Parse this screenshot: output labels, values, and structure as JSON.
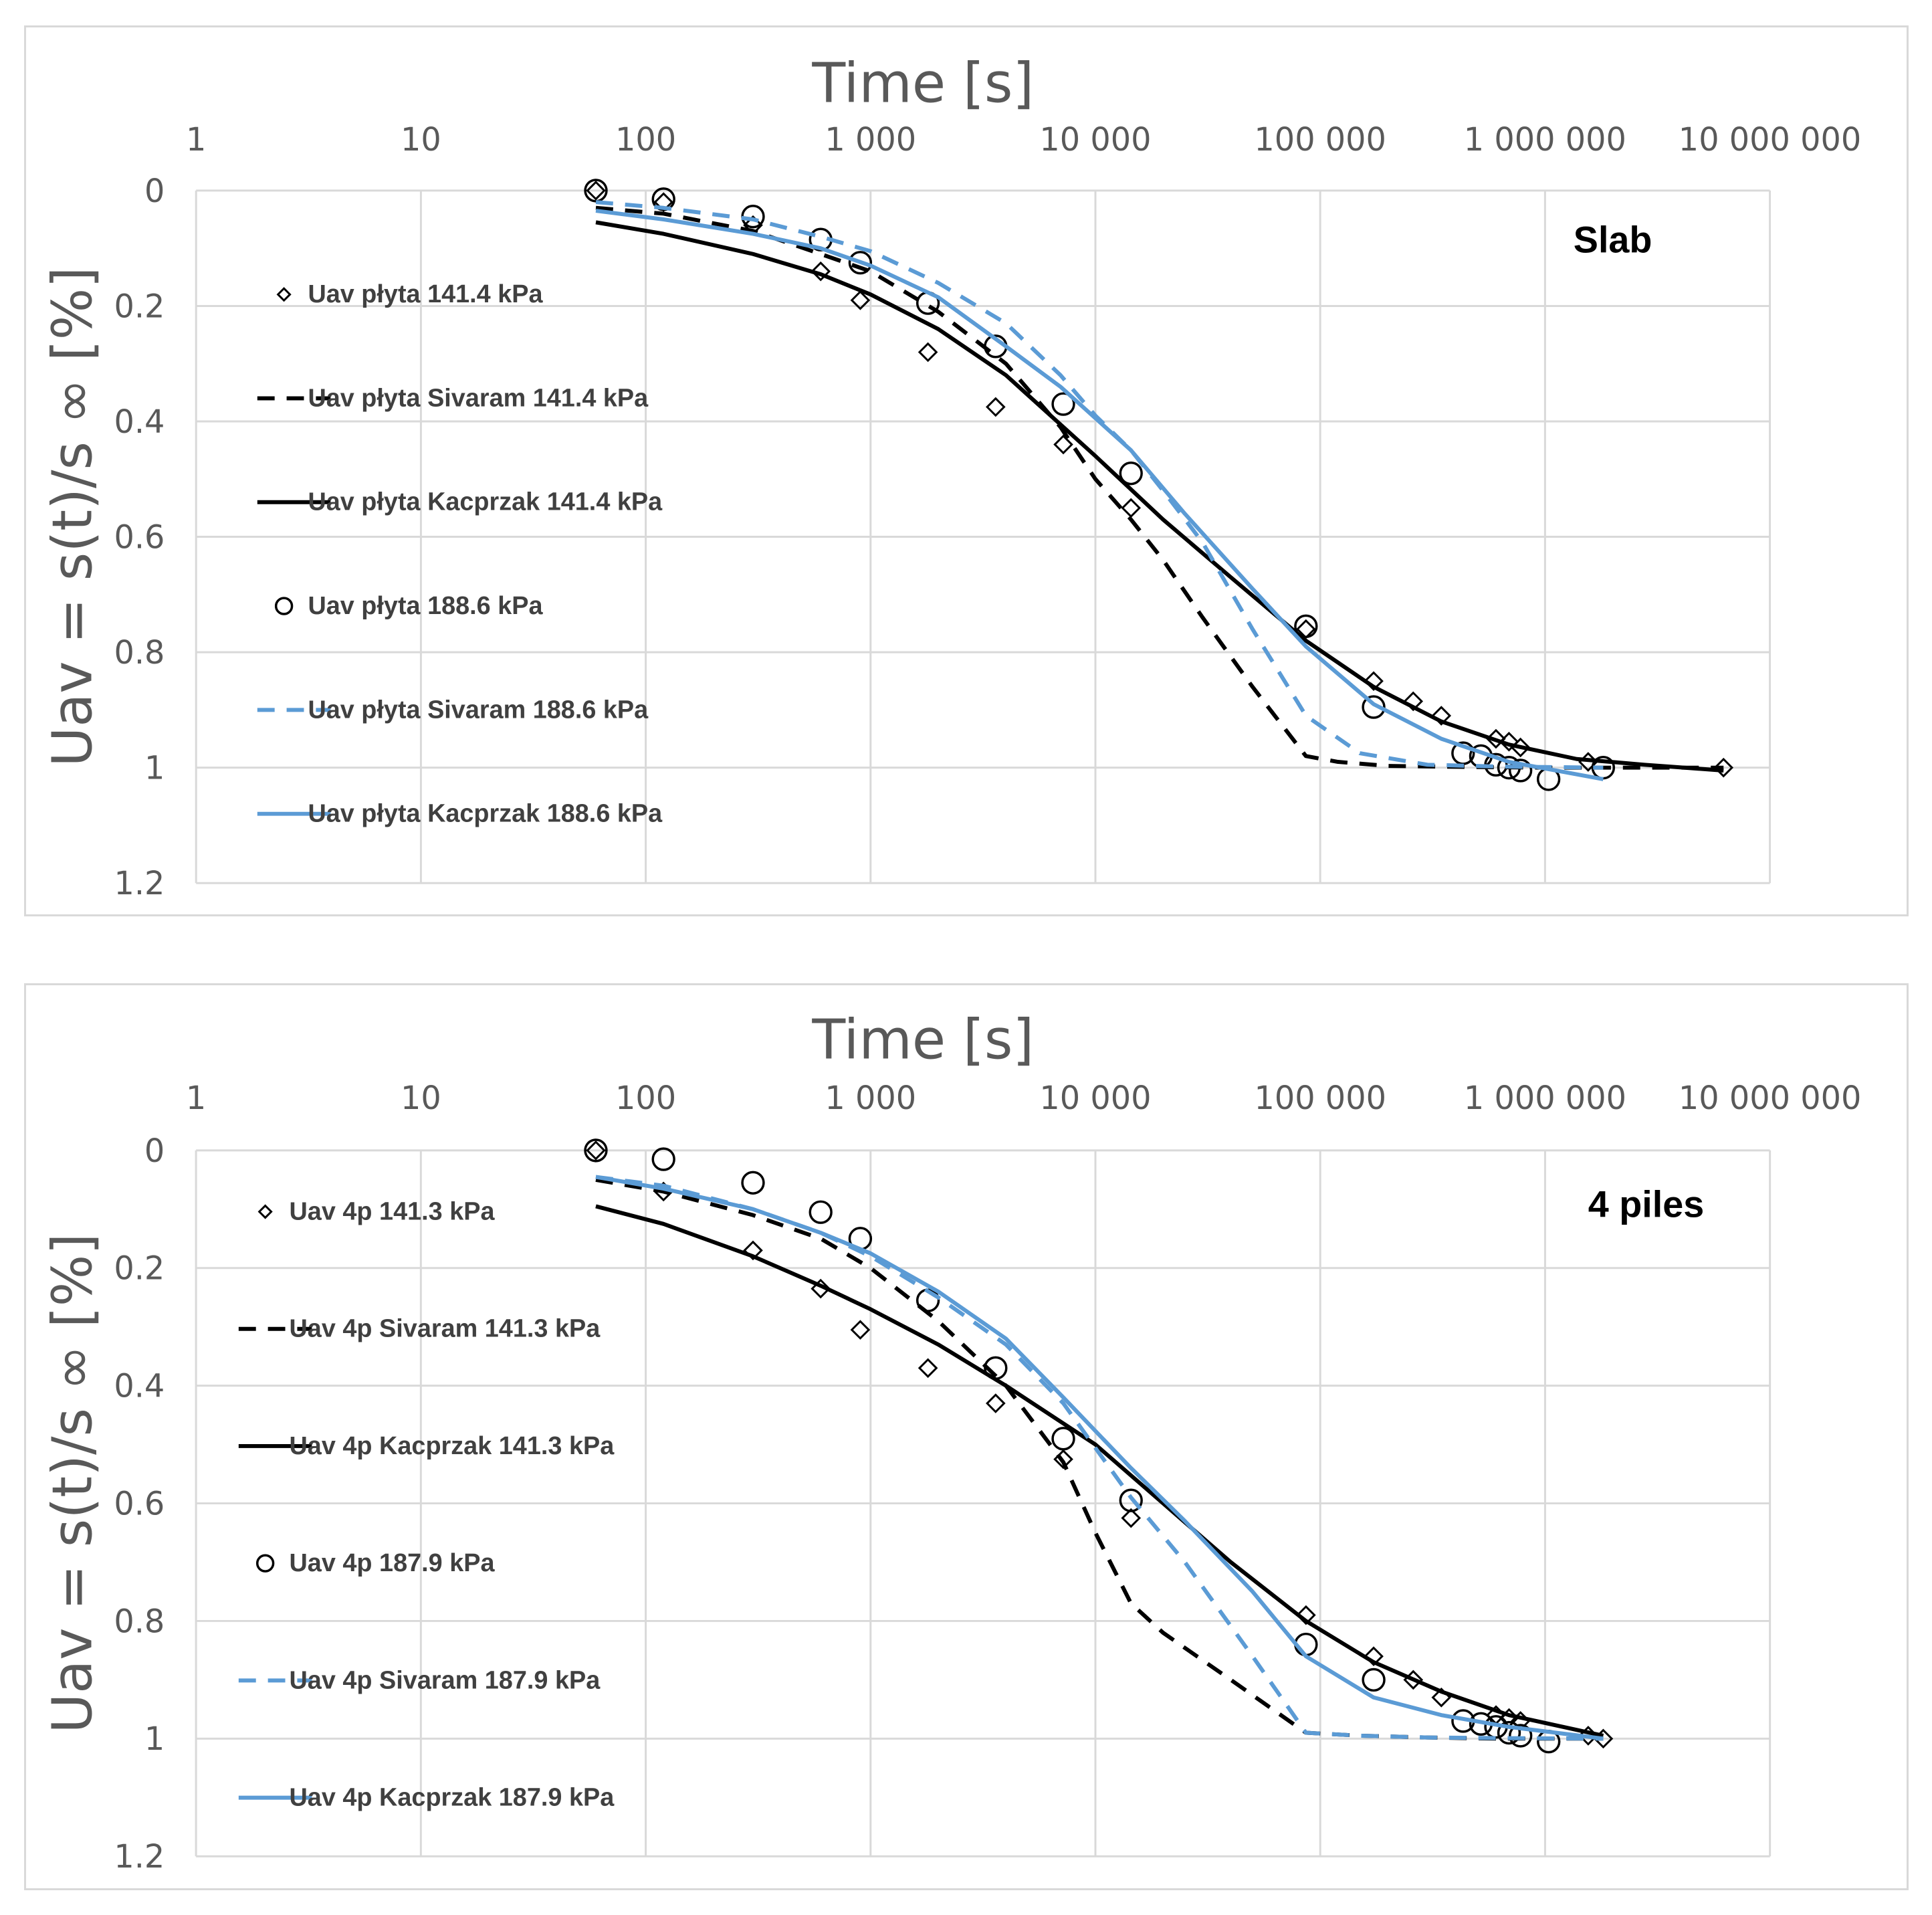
{
  "chart_data": [
    {
      "type": "scatter",
      "panel_label": "Slab",
      "xlabel": "Time [s]",
      "ylabel": "Uav = s(t)/s ∞  [%]",
      "x_scale": "log",
      "x_axis_position": "top",
      "y_inverted": true,
      "xlim": [
        1,
        10000000
      ],
      "ylim": [
        0,
        1.2
      ],
      "x_tick_labels": [
        "1",
        "10",
        "100",
        "1 000",
        "10 000",
        "100 000",
        "1 000 000",
        "10 000 000"
      ],
      "y_tick_labels": [
        "0",
        "0.2",
        "0.4",
        "0.6",
        "0.8",
        "1",
        "1.2"
      ],
      "grid": true,
      "legend_position": "left",
      "series": [
        {
          "name": "Uav płyta 141.4 kPa",
          "style": "marker",
          "marker": "diamond",
          "color": "#000000",
          "x": [
            60,
            120,
            300,
            600,
            900,
            1800,
            3600,
            7200,
            14400,
            86400,
            172800,
            259200,
            345600,
            604800,
            691200,
            777600,
            1555200,
            6220800
          ],
          "y": [
            0.0,
            0.02,
            0.06,
            0.14,
            0.19,
            0.28,
            0.375,
            0.44,
            0.55,
            0.76,
            0.85,
            0.885,
            0.91,
            0.95,
            0.955,
            0.965,
            0.99,
            1.0
          ]
        },
        {
          "name": "Uav płyta Sivaram 141.4 kPa",
          "style": "dashed",
          "color": "#000000",
          "x": [
            60,
            120,
            300,
            600,
            1000,
            2000,
            4000,
            7000,
            10000,
            14400,
            20000,
            30000,
            50000,
            86400,
            120000,
            200000,
            500000,
            1000000,
            2000000,
            6220800
          ],
          "y": [
            0.03,
            0.04,
            0.07,
            0.11,
            0.14,
            0.21,
            0.3,
            0.41,
            0.5,
            0.57,
            0.64,
            0.74,
            0.86,
            0.98,
            0.99,
            0.997,
            0.999,
            1.0,
            1.0,
            1.0
          ]
        },
        {
          "name": "Uav płyta Kacprzak 141.4 kPa",
          "style": "solid",
          "color": "#000000",
          "x": [
            60,
            120,
            300,
            600,
            1000,
            2000,
            4000,
            10000,
            20000,
            40000,
            86400,
            172800,
            345600,
            691200,
            1382400,
            2764800,
            6220800
          ],
          "y": [
            0.055,
            0.075,
            0.11,
            0.145,
            0.18,
            0.24,
            0.32,
            0.46,
            0.57,
            0.67,
            0.78,
            0.86,
            0.92,
            0.96,
            0.985,
            0.995,
            1.005
          ]
        },
        {
          "name": "Uav płyta 188.6 kPa",
          "style": "marker",
          "marker": "circle",
          "color": "#000000",
          "x": [
            60,
            120,
            300,
            600,
            900,
            1800,
            3600,
            7200,
            14400,
            86400,
            172800,
            432000,
            518400,
            604800,
            691200,
            777600,
            1036800,
            1814400
          ],
          "y": [
            0.0,
            0.015,
            0.045,
            0.085,
            0.125,
            0.195,
            0.27,
            0.37,
            0.49,
            0.755,
            0.895,
            0.975,
            0.98,
            0.995,
            1.0,
            1.005,
            1.02,
            1.0
          ]
        },
        {
          "name": "Uav płyta Sivaram 188.6 kPa",
          "style": "dashed",
          "color": "#5b9bd5",
          "x": [
            60,
            120,
            300,
            600,
            1000,
            2000,
            4000,
            7000,
            10000,
            14400,
            20000,
            30000,
            50000,
            86400,
            150000,
            300000,
            600000,
            1814400
          ],
          "y": [
            0.02,
            0.03,
            0.05,
            0.08,
            0.105,
            0.16,
            0.23,
            0.32,
            0.39,
            0.45,
            0.52,
            0.61,
            0.76,
            0.91,
            0.975,
            0.995,
            0.998,
            1.0
          ]
        },
        {
          "name": "Uav płyta Kacprzak 188.6 kPa",
          "style": "solid",
          "color": "#5b9bd5",
          "x": [
            60,
            120,
            300,
            600,
            1000,
            2000,
            4000,
            7000,
            14400,
            25000,
            50000,
            86400,
            172800,
            345600,
            691200,
            1814400
          ],
          "y": [
            0.035,
            0.05,
            0.075,
            0.1,
            0.13,
            0.185,
            0.27,
            0.34,
            0.45,
            0.56,
            0.69,
            0.79,
            0.89,
            0.95,
            0.99,
            1.02
          ]
        }
      ]
    },
    {
      "type": "scatter",
      "panel_label": "4 piles",
      "xlabel": "Time [s]",
      "ylabel": "Uav = s(t)/s ∞  [%]",
      "x_scale": "log",
      "x_axis_position": "top",
      "y_inverted": true,
      "xlim": [
        1,
        10000000
      ],
      "ylim": [
        0,
        1.2
      ],
      "x_tick_labels": [
        "1",
        "10",
        "100",
        "1 000",
        "10 000",
        "100 000",
        "1 000 000",
        "10 000 000"
      ],
      "y_tick_labels": [
        "0",
        "0.2",
        "0.4",
        "0.6",
        "0.8",
        "1",
        "1.2"
      ],
      "grid": true,
      "legend_position": "left",
      "series": [
        {
          "name": "Uav 4p 141.3 kPa",
          "style": "marker",
          "marker": "diamond",
          "color": "#000000",
          "x": [
            60,
            120,
            300,
            600,
            900,
            1800,
            3600,
            7200,
            14400,
            86400,
            172800,
            259200,
            345600,
            604800,
            691200,
            777600,
            1555200,
            1814400
          ],
          "y": [
            0.0,
            0.07,
            0.17,
            0.235,
            0.305,
            0.37,
            0.43,
            0.525,
            0.625,
            0.79,
            0.86,
            0.9,
            0.93,
            0.96,
            0.965,
            0.97,
            0.995,
            1.0
          ]
        },
        {
          "name": "Uav 4p Sivaram 141.3 kPa",
          "style": "dashed",
          "color": "#000000",
          "x": [
            60,
            120,
            300,
            600,
            1000,
            2000,
            4000,
            7200,
            10000,
            14400,
            20000,
            40000,
            86400,
            150000,
            300000,
            600000,
            1814400
          ],
          "y": [
            0.05,
            0.07,
            0.11,
            0.15,
            0.2,
            0.29,
            0.4,
            0.53,
            0.65,
            0.77,
            0.82,
            0.9,
            0.99,
            0.995,
            0.998,
            1.0,
            1.0
          ]
        },
        {
          "name": "Uav 4p Kacprzak 141.3 kPa",
          "style": "solid",
          "color": "#000000",
          "x": [
            60,
            120,
            300,
            600,
            1000,
            2000,
            4000,
            10000,
            20000,
            40000,
            86400,
            172800,
            345600,
            691200,
            1814400
          ],
          "y": [
            0.095,
            0.125,
            0.18,
            0.23,
            0.27,
            0.33,
            0.4,
            0.5,
            0.6,
            0.7,
            0.8,
            0.87,
            0.92,
            0.96,
            0.995
          ]
        },
        {
          "name": "Uav 4p 187.9 kPa",
          "style": "marker",
          "marker": "circle",
          "color": "#000000",
          "x": [
            60,
            120,
            300,
            600,
            900,
            1800,
            3600,
            7200,
            14400,
            86400,
            172800,
            432000,
            518400,
            604800,
            691200,
            777600,
            1036800
          ],
          "y": [
            0.0,
            0.015,
            0.055,
            0.105,
            0.15,
            0.255,
            0.37,
            0.49,
            0.595,
            0.84,
            0.9,
            0.97,
            0.975,
            0.98,
            0.99,
            0.995,
            1.005
          ]
        },
        {
          "name": "Uav 4p Sivaram 187.9 kPa",
          "style": "dashed",
          "color": "#5b9bd5",
          "x": [
            60,
            120,
            300,
            600,
            1000,
            2000,
            4000,
            7200,
            14400,
            25000,
            50000,
            86400,
            150000,
            300000,
            600000,
            1814400
          ],
          "y": [
            0.045,
            0.06,
            0.1,
            0.14,
            0.18,
            0.25,
            0.33,
            0.43,
            0.59,
            0.7,
            0.86,
            0.99,
            0.995,
            0.998,
            0.999,
            1.0
          ]
        },
        {
          "name": "Uav 4p Kacprzak 187.9 kPa",
          "style": "solid",
          "color": "#5b9bd5",
          "x": [
            60,
            120,
            300,
            600,
            1000,
            2000,
            4000,
            7200,
            14400,
            25000,
            50000,
            86400,
            172800,
            345600,
            691200,
            1814400
          ],
          "y": [
            0.045,
            0.065,
            0.1,
            0.14,
            0.175,
            0.24,
            0.32,
            0.42,
            0.54,
            0.63,
            0.75,
            0.86,
            0.93,
            0.96,
            0.98,
            1.0
          ]
        }
      ]
    }
  ]
}
